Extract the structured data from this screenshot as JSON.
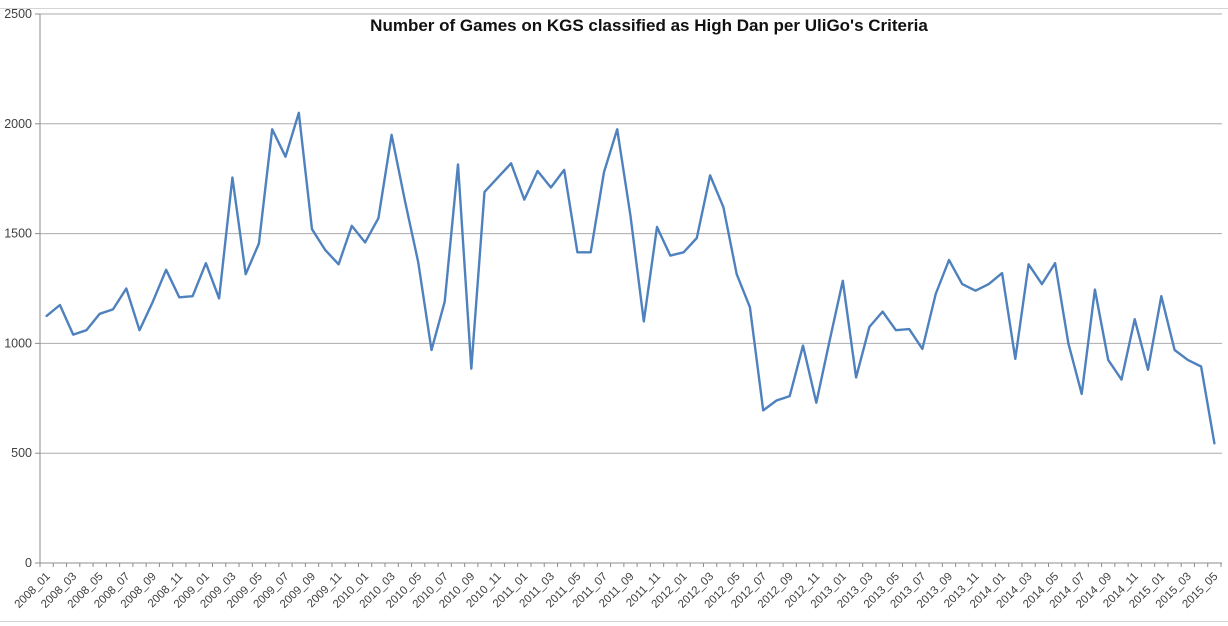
{
  "title_bar": {
    "title": "Number of Games on KGS classified as High Dan per UliGo's Criteria"
  },
  "colors": {
    "line": "#4E81BD",
    "gridline": "#ababab",
    "axis": "#8c8c8c",
    "tick_text": "#404040",
    "title_text": "#111111",
    "background": "#ffffff",
    "frame": "#d4d4d4"
  },
  "chart_data": {
    "type": "line",
    "title": "Number of Games on KGS classified as High Dan per UliGo's Criteria",
    "xlabel": "",
    "ylabel": "",
    "ylim": [
      0,
      2500
    ],
    "yticks": [
      0,
      500,
      1000,
      1500,
      2000,
      2500
    ],
    "grid": true,
    "legend": "none",
    "x_tick_label_every": 2,
    "x": [
      "2008_01",
      "2008_02",
      "2008_03",
      "2008_04",
      "2008_05",
      "2008_06",
      "2008_07",
      "2008_08",
      "2008_09",
      "2008_10",
      "2008_11",
      "2008_12",
      "2009_01",
      "2009_02",
      "2009_03",
      "2009_04",
      "2009_05",
      "2009_06",
      "2009_07",
      "2009_08",
      "2009_09",
      "2009_10",
      "2009_11",
      "2009_12",
      "2010_01",
      "2010_02",
      "2010_03",
      "2010_04",
      "2010_05",
      "2010_06",
      "2010_07",
      "2010_08",
      "2010_09",
      "2010_10",
      "2010_11",
      "2010_12",
      "2011_01",
      "2011_02",
      "2011_03",
      "2011_04",
      "2011_05",
      "2011_06",
      "2011_07",
      "2011_08",
      "2011_09",
      "2011_10",
      "2011_11",
      "2011_12",
      "2012_01",
      "2012_02",
      "2012_03",
      "2012_04",
      "2012_05",
      "2012_06",
      "2012_07",
      "2012_08",
      "2012_09",
      "2012_10",
      "2012_11",
      "2012_12",
      "2013_01",
      "2013_02",
      "2013_03",
      "2013_04",
      "2013_05",
      "2013_06",
      "2013_07",
      "2013_08",
      "2013_09",
      "2013_10",
      "2013_11",
      "2013_12",
      "2014_01",
      "2014_02",
      "2014_03",
      "2014_04",
      "2014_05",
      "2014_06",
      "2014_07",
      "2014_08",
      "2014_09",
      "2014_10",
      "2014_11",
      "2014_12",
      "2015_01",
      "2015_02",
      "2015_03",
      "2015_04",
      "2015_05"
    ],
    "values": [
      1125,
      1175,
      1040,
      1060,
      1135,
      1155,
      1250,
      1060,
      1190,
      1335,
      1210,
      1215,
      1365,
      1205,
      1755,
      1315,
      1455,
      1975,
      1850,
      2050,
      1520,
      1425,
      1360,
      1535,
      1460,
      1570,
      1950,
      1650,
      1370,
      970,
      1190,
      1815,
      885,
      1690,
      1755,
      1820,
      1655,
      1785,
      1710,
      1790,
      1415,
      1415,
      1780,
      1975,
      1580,
      1100,
      1530,
      1400,
      1415,
      1480,
      1765,
      1620,
      1315,
      1165,
      695,
      740,
      760,
      990,
      730,
      1010,
      1285,
      845,
      1075,
      1145,
      1060,
      1065,
      975,
      1225,
      1380,
      1270,
      1240,
      1270,
      1320,
      930,
      1360,
      1270,
      1365,
      1000,
      770,
      1245,
      925,
      835,
      1110,
      880,
      1215,
      970,
      925,
      895,
      545
    ]
  },
  "plot_geometry_note": "y axis 0-2500, monthly categories 2008_01 through 2015_05, labels every second month"
}
